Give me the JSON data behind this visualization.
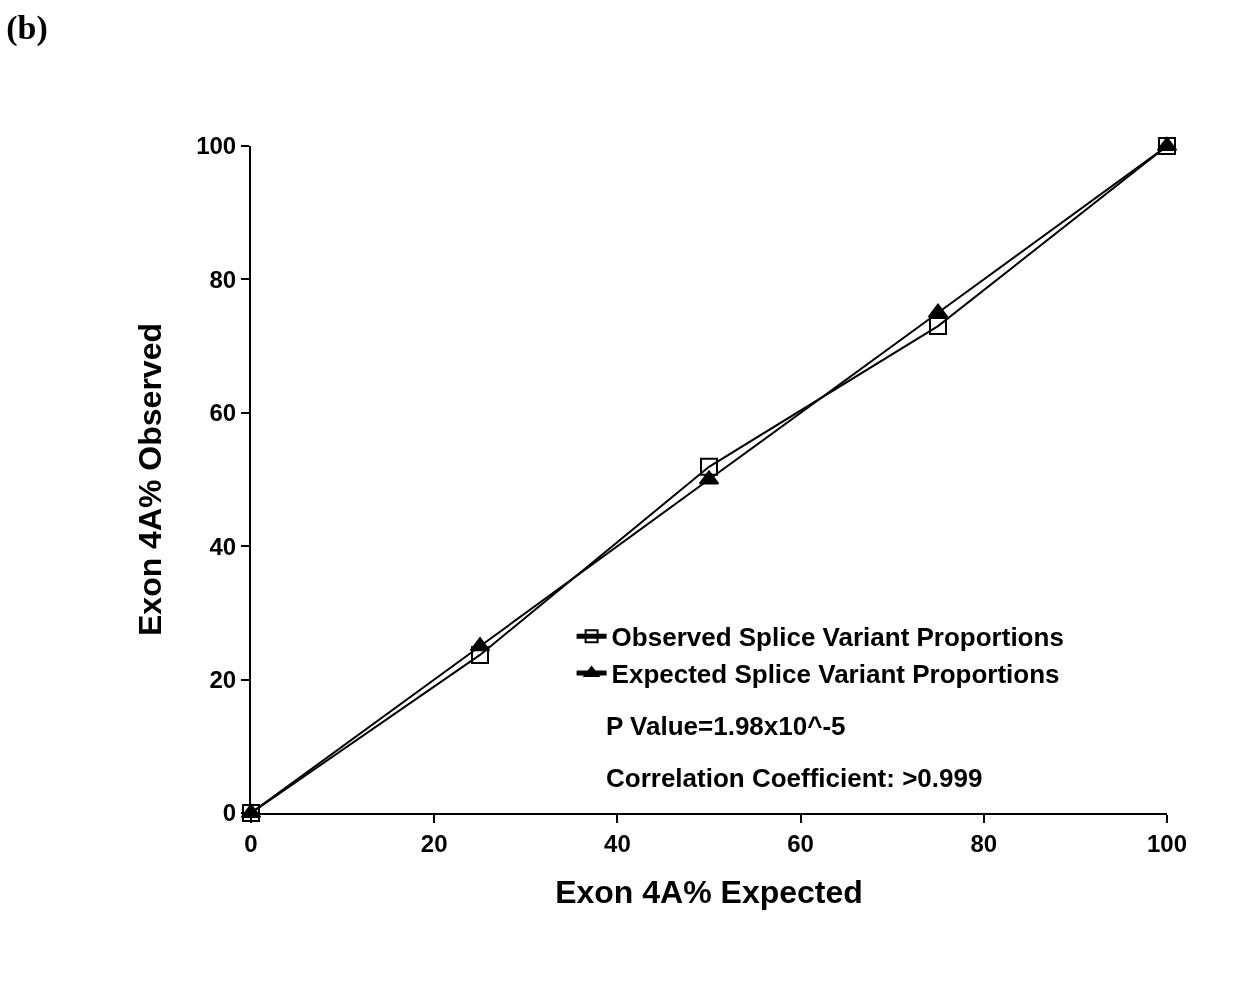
{
  "chart_data": {
    "type": "line",
    "title": "(b)",
    "xlabel": "Exon 4A% Expected",
    "ylabel": "Exon 4A% Observed",
    "x": [
      0,
      25,
      50,
      75,
      100
    ],
    "series": [
      {
        "name": "Observed Splice Variant Proportions",
        "color": "#000000",
        "marker": "square",
        "values": [
          0,
          23.7,
          51.9,
          73,
          100
        ]
      },
      {
        "name": "Expected Splice Variant Proportions",
        "color": "#000000",
        "marker": "triangle",
        "values": [
          0,
          25,
          50,
          75,
          100
        ]
      }
    ],
    "annotations": [
      "P Value=1.98x10^-5",
      "Correlation Coefficient: >0.999"
    ],
    "xlim": [
      0,
      100
    ],
    "ylim": [
      0,
      100
    ],
    "xticks": [
      0,
      20,
      40,
      60,
      80,
      100
    ],
    "yticks": [
      0,
      20,
      40,
      60,
      80,
      100
    ],
    "legend": "bottom right",
    "line_style": "solid"
  }
}
